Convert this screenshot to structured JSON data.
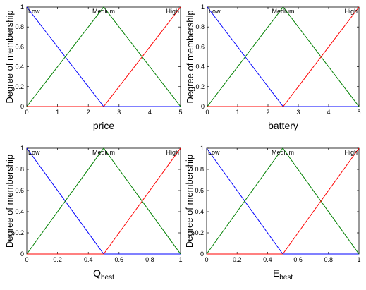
{
  "chart_data": [
    {
      "type": "line",
      "xlabel": "price",
      "xlabel_sub": "",
      "ylabel": "Degree of membership",
      "xlim": [
        0,
        5
      ],
      "ylim": [
        0,
        1
      ],
      "xticks": [
        "0",
        "1",
        "2",
        "3",
        "4",
        "5"
      ],
      "yticks": [
        "0",
        "0.2",
        "0.4",
        "0.6",
        "0.8",
        "1"
      ],
      "series": [
        {
          "name": "Low",
          "color": "#0000ff",
          "x": [
            0,
            2.5,
            5
          ],
          "y": [
            1,
            0,
            0
          ]
        },
        {
          "name": "Medium",
          "color": "#008000",
          "x": [
            0,
            2.5,
            5
          ],
          "y": [
            0,
            1,
            0
          ]
        },
        {
          "name": "High",
          "color": "#ff0000",
          "x": [
            0,
            2.5,
            5
          ],
          "y": [
            0,
            0,
            1
          ]
        }
      ]
    },
    {
      "type": "line",
      "xlabel": "battery",
      "xlabel_sub": "",
      "ylabel": "Degree of membership",
      "xlim": [
        0,
        5
      ],
      "ylim": [
        0,
        1
      ],
      "xticks": [
        "0",
        "1",
        "2",
        "3",
        "4",
        "5"
      ],
      "yticks": [
        "0",
        "0.2",
        "0.4",
        "0.6",
        "0.8",
        "1"
      ],
      "series": [
        {
          "name": "Low",
          "color": "#0000ff",
          "x": [
            0,
            2.5,
            5
          ],
          "y": [
            1,
            0,
            0
          ]
        },
        {
          "name": "Medium",
          "color": "#008000",
          "x": [
            0,
            2.5,
            5
          ],
          "y": [
            0,
            1,
            0
          ]
        },
        {
          "name": "High",
          "color": "#ff0000",
          "x": [
            0,
            2.5,
            5
          ],
          "y": [
            0,
            0,
            1
          ]
        }
      ]
    },
    {
      "type": "line",
      "xlabel": "Q",
      "xlabel_sub": "best",
      "ylabel": "Degree of membership",
      "xlim": [
        0,
        1
      ],
      "ylim": [
        0,
        1
      ],
      "xticks": [
        "0",
        "0.2",
        "0.4",
        "0.6",
        "0.8",
        "1"
      ],
      "yticks": [
        "0",
        "0.2",
        "0.4",
        "0.6",
        "0.8",
        "1"
      ],
      "series": [
        {
          "name": "Low",
          "color": "#0000ff",
          "x": [
            0,
            0.5,
            1
          ],
          "y": [
            1,
            0,
            0
          ]
        },
        {
          "name": "Medium",
          "color": "#008000",
          "x": [
            0,
            0.5,
            1
          ],
          "y": [
            0,
            1,
            0
          ]
        },
        {
          "name": "High",
          "color": "#ff0000",
          "x": [
            0,
            0.5,
            1
          ],
          "y": [
            0,
            0,
            1
          ]
        }
      ]
    },
    {
      "type": "line",
      "xlabel": "E",
      "xlabel_sub": "best",
      "ylabel": "Degree of membership",
      "xlim": [
        0,
        1
      ],
      "ylim": [
        0,
        1
      ],
      "xticks": [
        "0",
        "0.2",
        "0.4",
        "0.6",
        "0.8",
        "1"
      ],
      "yticks": [
        "0",
        "0.2",
        "0.4",
        "0.6",
        "0.8",
        "1"
      ],
      "series": [
        {
          "name": "Low",
          "color": "#0000ff",
          "x": [
            0,
            0.5,
            1
          ],
          "y": [
            1,
            0,
            0
          ]
        },
        {
          "name": "Medium",
          "color": "#008000",
          "x": [
            0,
            0.5,
            1
          ],
          "y": [
            0,
            1,
            0
          ]
        },
        {
          "name": "High",
          "color": "#ff0000",
          "x": [
            0,
            0.5,
            1
          ],
          "y": [
            0,
            0,
            1
          ]
        }
      ]
    }
  ]
}
